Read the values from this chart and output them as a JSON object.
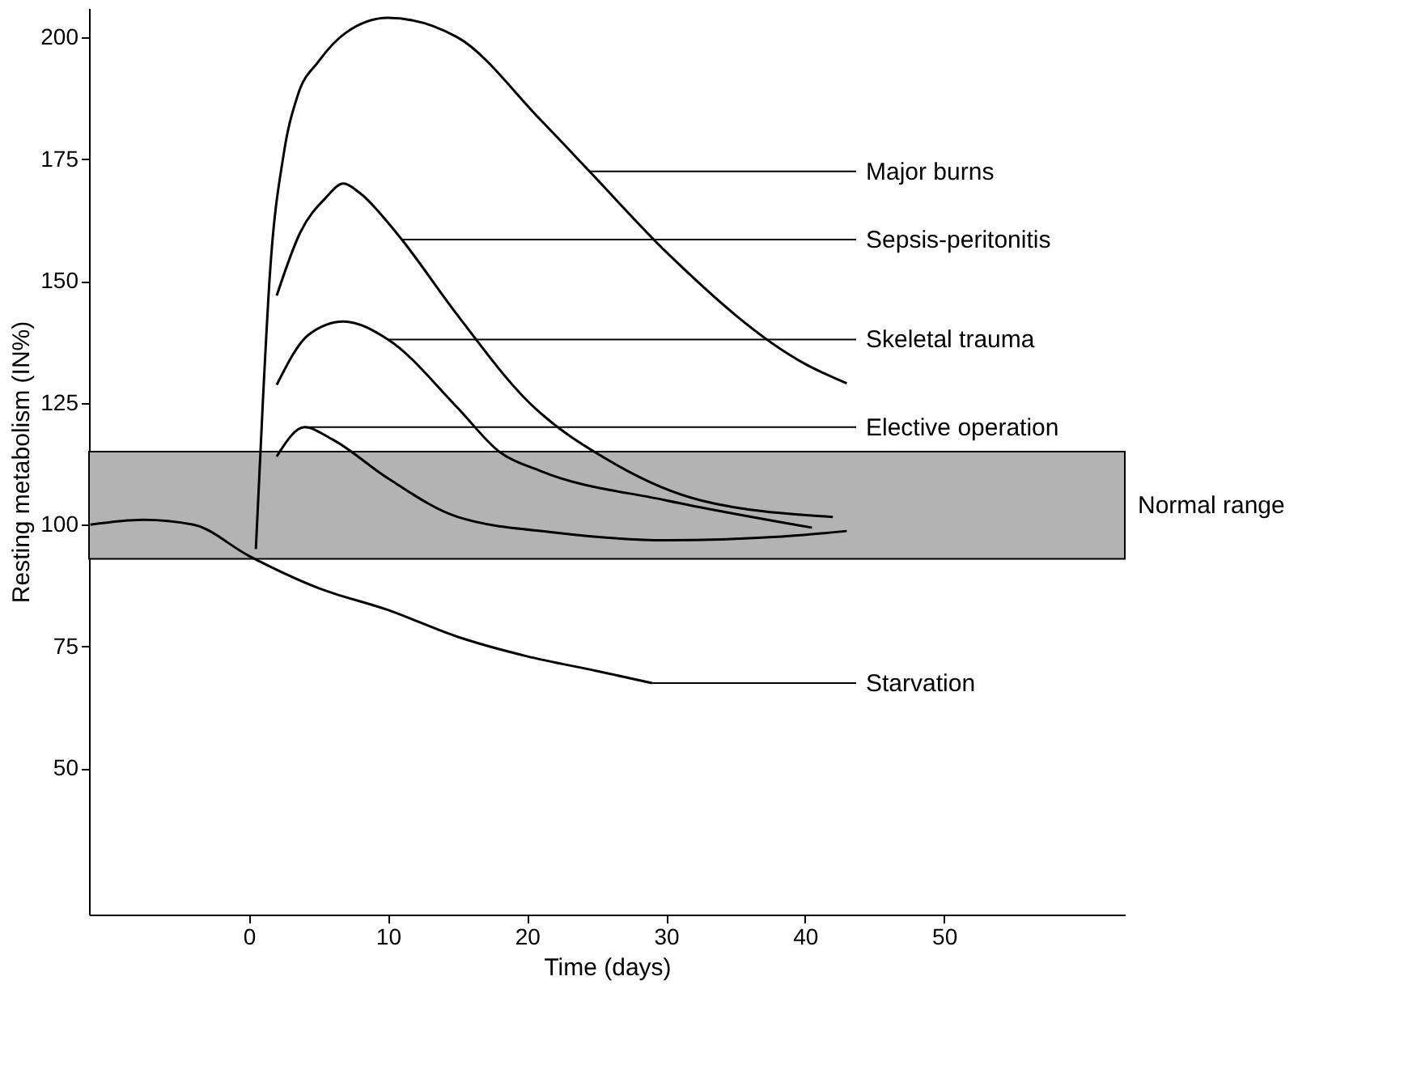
{
  "chart_data": {
    "type": "line",
    "xlabel": "Time (days)",
    "ylabel": "Resting metabolism (IN%)",
    "xlim": [
      -11.5,
      63
    ],
    "xticks": [
      0,
      10,
      20,
      30,
      40,
      50
    ],
    "ylim": [
      20,
      206
    ],
    "yticks": [
      50,
      75,
      100,
      125,
      150,
      175,
      200
    ],
    "grid": false,
    "marker": "none",
    "line_style": "solid",
    "series": [
      {
        "color": "#000000",
        "x": [
          -11.4,
          -7.6,
          -4,
          0,
          5,
          10,
          15,
          20,
          25,
          29
        ],
        "values": [
          100,
          101,
          100,
          93.6,
          87,
          82.5,
          77,
          73,
          70,
          67.5
        ]
      },
      {
        "color": "#000000",
        "x": [
          0.5,
          1,
          1.5,
          2.5,
          3.5,
          5,
          7,
          10,
          15,
          21,
          24.5,
          30,
          40,
          43
        ],
        "values": [
          95,
          125,
          151,
          176,
          188,
          195,
          201,
          204,
          200,
          183,
          172.5,
          156,
          133,
          129
        ]
      },
      {
        "color": "#000000",
        "x": [
          2,
          3.7,
          5.5,
          6.8,
          8,
          10,
          11,
          15,
          20,
          26,
          32.5,
          42
        ],
        "values": [
          147,
          160,
          167,
          170,
          168,
          162,
          158.5,
          143,
          125.5,
          113,
          105,
          101.6
        ]
      },
      {
        "color": "#000000",
        "x": [
          2,
          4.3,
          6.8,
          10,
          15,
          18,
          21,
          30,
          40.5
        ],
        "values": [
          128.7,
          139,
          141.7,
          138,
          124,
          115,
          111,
          105,
          99.4
        ]
      },
      {
        "color": "#000000",
        "x": [
          2,
          4,
          6,
          10,
          15,
          22,
          30,
          38,
          43
        ],
        "values": [
          114,
          120,
          117.5,
          109.5,
          101.6,
          98.4,
          96.8,
          97.5,
          98.7
        ]
      }
    ],
    "bands": [
      {
        "axis": "y",
        "from": 93,
        "to": 115,
        "label": "Normal range",
        "color": "#b3b3b3"
      }
    ],
    "annotations": [
      {
        "text": "Major burns",
        "x": 24.5,
        "y": 172.5
      },
      {
        "text": "Sepsis-peritonitis",
        "x": 11,
        "y": 158.5
      },
      {
        "text": "Skeletal trauma",
        "x": 10,
        "y": 138
      },
      {
        "text": "Elective operation",
        "x": 4,
        "y": 120
      },
      {
        "text": "Starvation",
        "x": 29,
        "y": 67.5
      }
    ]
  }
}
